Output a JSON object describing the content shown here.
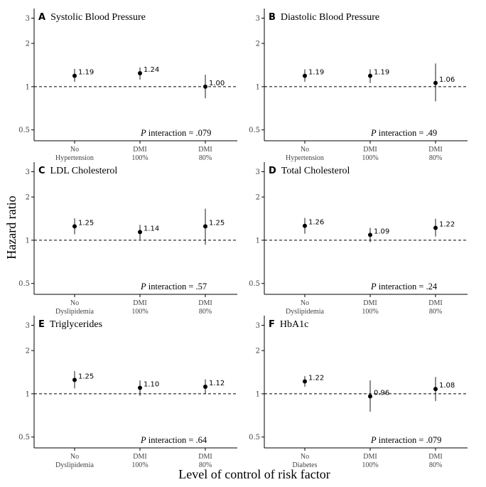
{
  "figure": {
    "ylabel": "Hazard ratio",
    "xlabel": "Level of control of risk factor"
  },
  "chart_data": [
    {
      "type": "scatter",
      "panel_letter": "A",
      "title": "Systolic Blood Pressure",
      "categories": [
        [
          "No",
          "Hypertension"
        ],
        [
          "DMI",
          "100%"
        ],
        [
          "DMI",
          "80%"
        ]
      ],
      "values": [
        1.19,
        1.24,
        1.0
      ],
      "value_labels": [
        "1.19",
        "1.24",
        "1.00"
      ],
      "ci_low": [
        1.08,
        1.12,
        0.83
      ],
      "ci_high": [
        1.33,
        1.36,
        1.21
      ],
      "y_scale": "log",
      "ylim": [
        0.42,
        3.5
      ],
      "yticks": [
        0.5,
        1,
        2,
        3
      ],
      "ytick_labels": [
        "0.5",
        "1",
        "2",
        "3"
      ],
      "reference_line": 1,
      "annotation_prefix": "P",
      "annotation_text": " interaction = .079"
    },
    {
      "type": "scatter",
      "panel_letter": "B",
      "title": "Diastolic Blood Pressure",
      "categories": [
        [
          "No",
          "Hypertension"
        ],
        [
          "DMI",
          "100%"
        ],
        [
          "DMI",
          "80%"
        ]
      ],
      "values": [
        1.19,
        1.19,
        1.06
      ],
      "value_labels": [
        "1.19",
        "1.19",
        "1.06"
      ],
      "ci_low": [
        1.08,
        1.06,
        0.79
      ],
      "ci_high": [
        1.32,
        1.32,
        1.45
      ],
      "y_scale": "log",
      "ylim": [
        0.42,
        3.5
      ],
      "yticks": [
        0.5,
        1,
        2,
        3
      ],
      "ytick_labels": [
        "0.5",
        "1",
        "2",
        "3"
      ],
      "reference_line": 1,
      "annotation_prefix": "P",
      "annotation_text": " interaction = .49"
    },
    {
      "type": "scatter",
      "panel_letter": "C",
      "title": "LDL Cholesterol",
      "categories": [
        [
          "No",
          "Dyslipidemia"
        ],
        [
          "DMI",
          "100%"
        ],
        [
          "DMI",
          "80%"
        ]
      ],
      "values": [
        1.25,
        1.14,
        1.25
      ],
      "value_labels": [
        "1.25",
        "1.14",
        "1.25"
      ],
      "ci_low": [
        1.1,
        1.01,
        0.93
      ],
      "ci_high": [
        1.42,
        1.28,
        1.66
      ],
      "y_scale": "log",
      "ylim": [
        0.42,
        3.5
      ],
      "yticks": [
        0.5,
        1,
        2,
        3
      ],
      "ytick_labels": [
        "0.5",
        "1",
        "2",
        "3"
      ],
      "reference_line": 1,
      "annotation_prefix": "P",
      "annotation_text": " interaction = .57"
    },
    {
      "type": "scatter",
      "panel_letter": "D",
      "title": "Total Cholesterol",
      "categories": [
        [
          "No",
          "Dyslipidemia"
        ],
        [
          "DMI",
          "100%"
        ],
        [
          "DMI",
          "80%"
        ]
      ],
      "values": [
        1.26,
        1.09,
        1.22
      ],
      "value_labels": [
        "1.26",
        "1.09",
        "1.22"
      ],
      "ci_low": [
        1.11,
        0.97,
        1.06
      ],
      "ci_high": [
        1.43,
        1.22,
        1.41
      ],
      "y_scale": "log",
      "ylim": [
        0.42,
        3.5
      ],
      "yticks": [
        0.5,
        1,
        2,
        3
      ],
      "ytick_labels": [
        "0.5",
        "1",
        "2",
        "3"
      ],
      "reference_line": 1,
      "annotation_prefix": "P",
      "annotation_text": " interaction = .24"
    },
    {
      "type": "scatter",
      "panel_letter": "E",
      "title": "Triglycerides",
      "categories": [
        [
          "No",
          "Dyslipidemia"
        ],
        [
          "DMI",
          "100%"
        ],
        [
          "DMI",
          "80%"
        ]
      ],
      "values": [
        1.25,
        1.1,
        1.12
      ],
      "value_labels": [
        "1.25",
        "1.10",
        "1.12"
      ],
      "ci_low": [
        1.09,
        0.97,
        1.0
      ],
      "ci_high": [
        1.44,
        1.24,
        1.26
      ],
      "y_scale": "log",
      "ylim": [
        0.42,
        3.5
      ],
      "yticks": [
        0.5,
        1,
        2,
        3
      ],
      "ytick_labels": [
        "0.5",
        "1",
        "2",
        "3"
      ],
      "reference_line": 1,
      "annotation_prefix": "P",
      "annotation_text": " interaction = .64"
    },
    {
      "type": "scatter",
      "panel_letter": "F",
      "title": "HbA1c",
      "categories": [
        [
          "No",
          "Diabetes"
        ],
        [
          "DMI",
          "100%"
        ],
        [
          "DMI",
          "80%"
        ]
      ],
      "values": [
        1.22,
        0.96,
        1.08
      ],
      "value_labels": [
        "1.22",
        "0.96",
        "1.08"
      ],
      "ci_low": [
        1.12,
        0.75,
        0.89
      ],
      "ci_high": [
        1.33,
        1.24,
        1.31
      ],
      "y_scale": "log",
      "ylim": [
        0.42,
        3.5
      ],
      "yticks": [
        0.5,
        1,
        2,
        3
      ],
      "ytick_labels": [
        "0.5",
        "1",
        "2",
        "3"
      ],
      "reference_line": 1,
      "annotation_prefix": "P",
      "annotation_text": " interaction = .079"
    }
  ]
}
